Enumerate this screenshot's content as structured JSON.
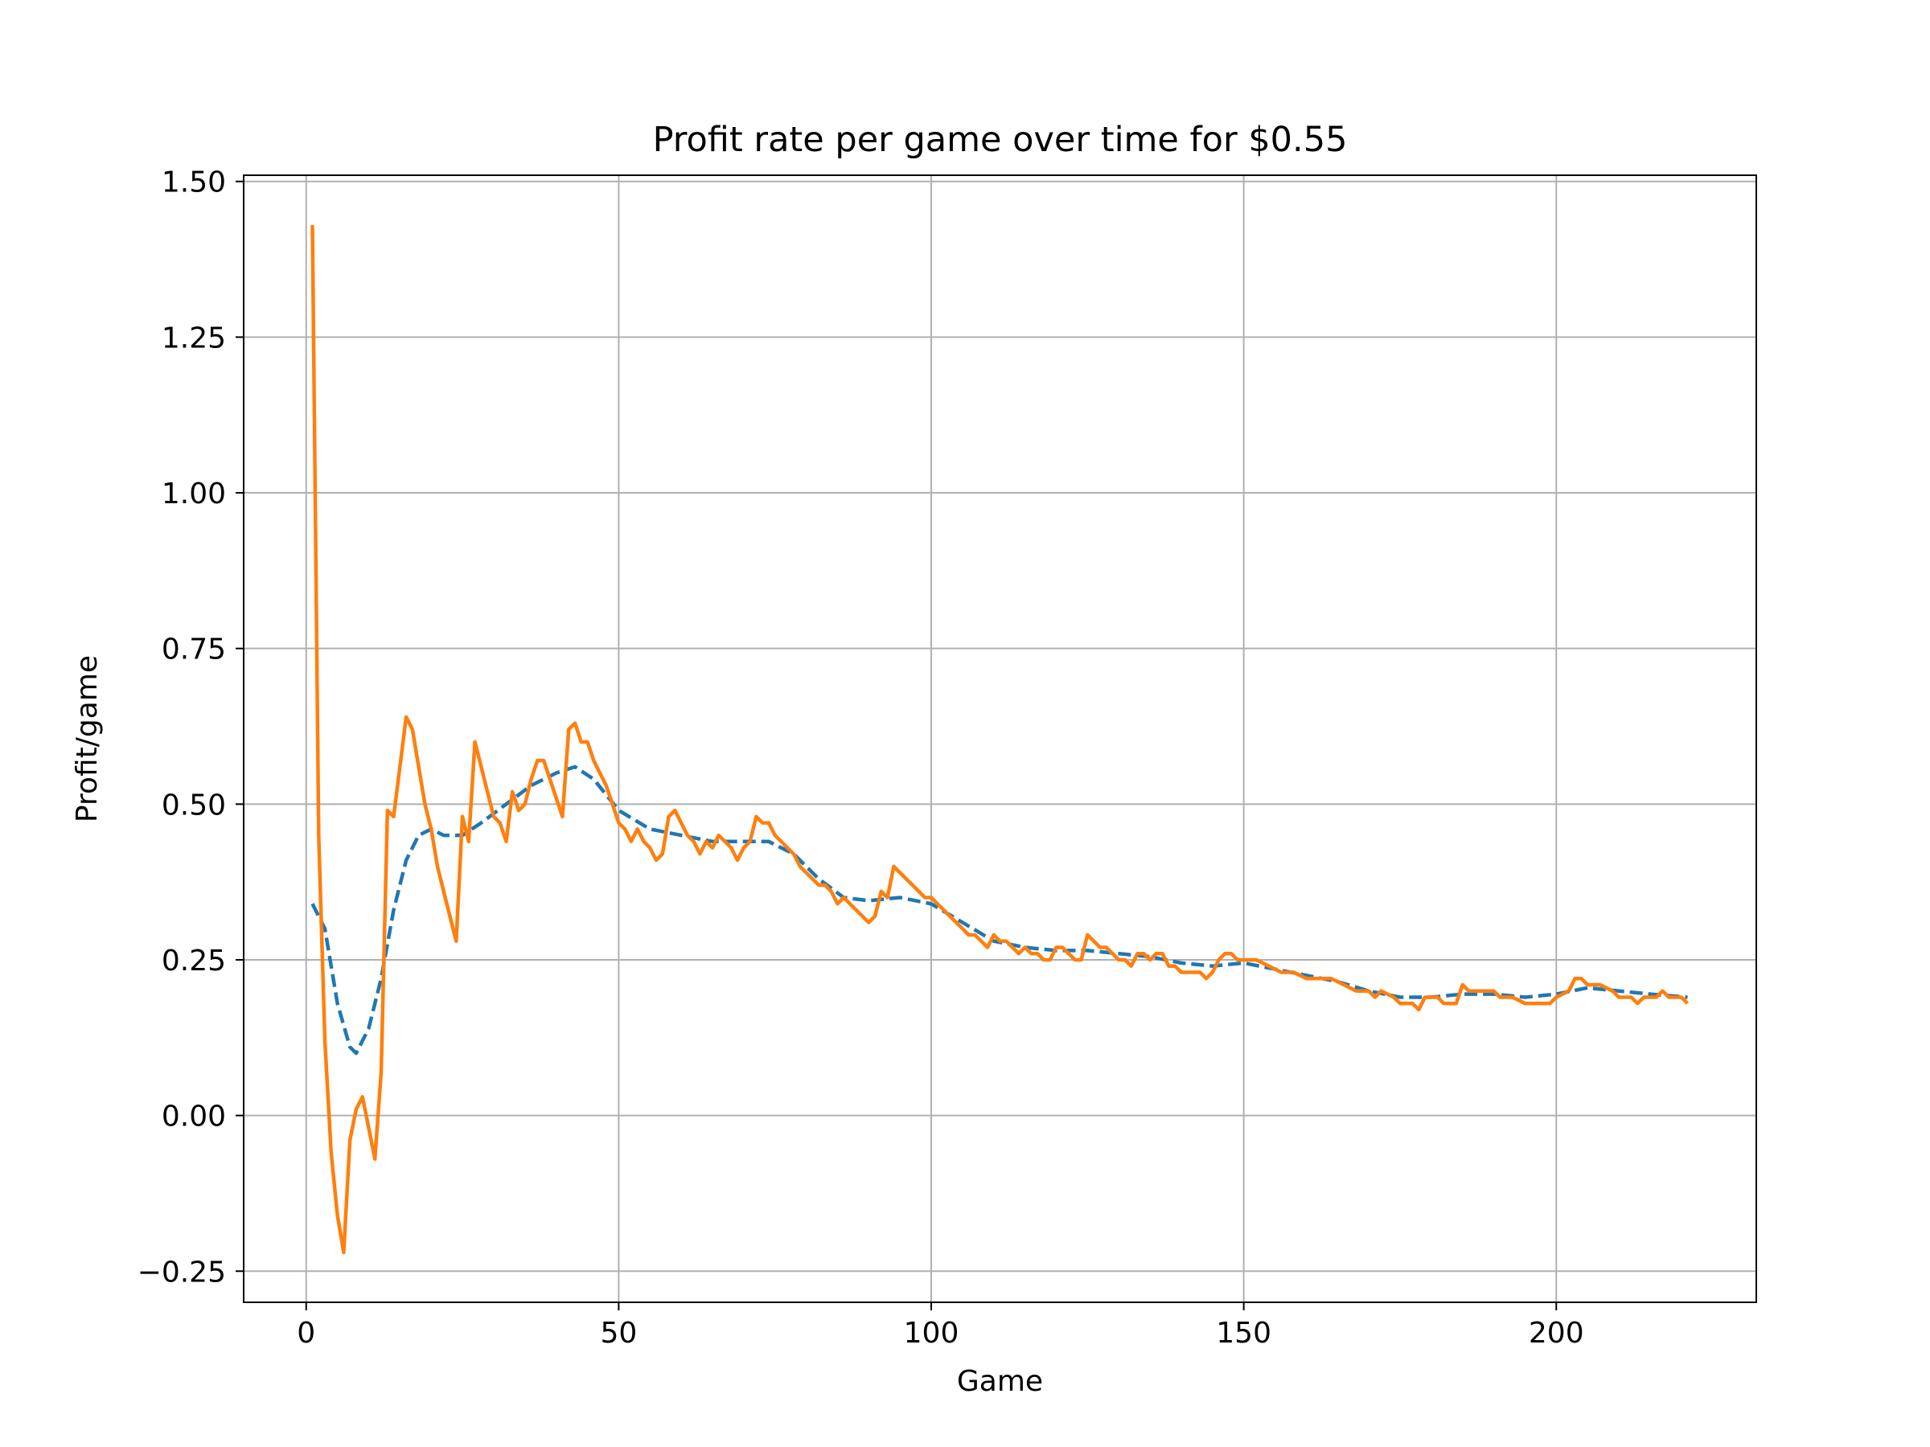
{
  "chart_data": {
    "type": "line",
    "title": "Profit rate per game over time for $0.55",
    "xlabel": "Game",
    "ylabel": "Profit/game",
    "xlim": [
      -10,
      232
    ],
    "ylim": [
      -0.3,
      1.51
    ],
    "xticks": [
      0,
      50,
      100,
      150,
      200
    ],
    "xtick_labels": [
      "0",
      "50",
      "100",
      "150",
      "200"
    ],
    "yticks": [
      -0.25,
      0.0,
      0.25,
      0.5,
      0.75,
      1.0,
      1.25,
      1.5
    ],
    "ytick_labels": [
      "−0.25",
      "0.00",
      "0.25",
      "0.50",
      "0.75",
      "1.00",
      "1.25",
      "1.50"
    ],
    "grid": true,
    "legend": "none",
    "series": [
      {
        "color": "#1f77b4",
        "style": "dashed",
        "points": [
          [
            1,
            0.34
          ],
          [
            3,
            0.3
          ],
          [
            5,
            0.18
          ],
          [
            7,
            0.11
          ],
          [
            8,
            0.1
          ],
          [
            10,
            0.14
          ],
          [
            12,
            0.22
          ],
          [
            14,
            0.33
          ],
          [
            16,
            0.41
          ],
          [
            18,
            0.45
          ],
          [
            20,
            0.46
          ],
          [
            22,
            0.45
          ],
          [
            25,
            0.45
          ],
          [
            28,
            0.47
          ],
          [
            32,
            0.5
          ],
          [
            36,
            0.53
          ],
          [
            40,
            0.55
          ],
          [
            43,
            0.56
          ],
          [
            46,
            0.54
          ],
          [
            50,
            0.49
          ],
          [
            55,
            0.46
          ],
          [
            60,
            0.45
          ],
          [
            65,
            0.44
          ],
          [
            70,
            0.44
          ],
          [
            74,
            0.44
          ],
          [
            78,
            0.42
          ],
          [
            82,
            0.38
          ],
          [
            86,
            0.35
          ],
          [
            90,
            0.345
          ],
          [
            95,
            0.35
          ],
          [
            100,
            0.34
          ],
          [
            105,
            0.31
          ],
          [
            110,
            0.28
          ],
          [
            115,
            0.27
          ],
          [
            120,
            0.265
          ],
          [
            125,
            0.265
          ],
          [
            130,
            0.26
          ],
          [
            135,
            0.255
          ],
          [
            140,
            0.245
          ],
          [
            145,
            0.24
          ],
          [
            150,
            0.245
          ],
          [
            155,
            0.235
          ],
          [
            160,
            0.225
          ],
          [
            165,
            0.215
          ],
          [
            170,
            0.2
          ],
          [
            175,
            0.19
          ],
          [
            180,
            0.19
          ],
          [
            185,
            0.195
          ],
          [
            190,
            0.195
          ],
          [
            195,
            0.19
          ],
          [
            200,
            0.195
          ],
          [
            205,
            0.205
          ],
          [
            210,
            0.2
          ],
          [
            215,
            0.195
          ],
          [
            221,
            0.19
          ]
        ]
      },
      {
        "color": "#ff7f0e",
        "style": "solid",
        "points": [
          [
            1,
            1.43
          ],
          [
            2,
            0.45
          ],
          [
            3,
            0.12
          ],
          [
            4,
            -0.06
          ],
          [
            5,
            -0.16
          ],
          [
            6,
            -0.22
          ],
          [
            7,
            -0.04
          ],
          [
            8,
            0.01
          ],
          [
            9,
            0.03
          ],
          [
            10,
            -0.02
          ],
          [
            11,
            -0.07
          ],
          [
            12,
            0.07
          ],
          [
            13,
            0.49
          ],
          [
            14,
            0.48
          ],
          [
            15,
            0.56
          ],
          [
            16,
            0.64
          ],
          [
            17,
            0.62
          ],
          [
            18,
            0.56
          ],
          [
            19,
            0.5
          ],
          [
            20,
            0.46
          ],
          [
            21,
            0.4
          ],
          [
            22,
            0.36
          ],
          [
            23,
            0.32
          ],
          [
            24,
            0.28
          ],
          [
            25,
            0.48
          ],
          [
            26,
            0.44
          ],
          [
            27,
            0.6
          ],
          [
            28,
            0.56
          ],
          [
            29,
            0.52
          ],
          [
            30,
            0.48
          ],
          [
            31,
            0.47
          ],
          [
            32,
            0.44
          ],
          [
            33,
            0.52
          ],
          [
            34,
            0.49
          ],
          [
            35,
            0.5
          ],
          [
            36,
            0.54
          ],
          [
            37,
            0.57
          ],
          [
            38,
            0.57
          ],
          [
            39,
            0.54
          ],
          [
            40,
            0.51
          ],
          [
            41,
            0.48
          ],
          [
            42,
            0.62
          ],
          [
            43,
            0.63
          ],
          [
            44,
            0.6
          ],
          [
            45,
            0.6
          ],
          [
            46,
            0.57
          ],
          [
            47,
            0.55
          ],
          [
            48,
            0.53
          ],
          [
            49,
            0.5
          ],
          [
            50,
            0.47
          ],
          [
            51,
            0.46
          ],
          [
            52,
            0.44
          ],
          [
            53,
            0.46
          ],
          [
            54,
            0.44
          ],
          [
            55,
            0.43
          ],
          [
            56,
            0.41
          ],
          [
            57,
            0.42
          ],
          [
            58,
            0.48
          ],
          [
            59,
            0.49
          ],
          [
            60,
            0.47
          ],
          [
            61,
            0.45
          ],
          [
            62,
            0.44
          ],
          [
            63,
            0.42
          ],
          [
            64,
            0.44
          ],
          [
            65,
            0.43
          ],
          [
            66,
            0.45
          ],
          [
            67,
            0.44
          ],
          [
            68,
            0.43
          ],
          [
            69,
            0.41
          ],
          [
            70,
            0.43
          ],
          [
            71,
            0.44
          ],
          [
            72,
            0.48
          ],
          [
            73,
            0.47
          ],
          [
            74,
            0.47
          ],
          [
            75,
            0.45
          ],
          [
            76,
            0.44
          ],
          [
            77,
            0.43
          ],
          [
            78,
            0.42
          ],
          [
            79,
            0.4
          ],
          [
            80,
            0.39
          ],
          [
            81,
            0.38
          ],
          [
            82,
            0.37
          ],
          [
            83,
            0.37
          ],
          [
            84,
            0.36
          ],
          [
            85,
            0.34
          ],
          [
            86,
            0.35
          ],
          [
            87,
            0.34
          ],
          [
            88,
            0.33
          ],
          [
            89,
            0.32
          ],
          [
            90,
            0.31
          ],
          [
            91,
            0.32
          ],
          [
            92,
            0.36
          ],
          [
            93,
            0.35
          ],
          [
            94,
            0.4
          ],
          [
            95,
            0.39
          ],
          [
            96,
            0.38
          ],
          [
            97,
            0.37
          ],
          [
            98,
            0.36
          ],
          [
            99,
            0.35
          ],
          [
            100,
            0.35
          ],
          [
            101,
            0.34
          ],
          [
            102,
            0.33
          ],
          [
            103,
            0.32
          ],
          [
            104,
            0.31
          ],
          [
            105,
            0.3
          ],
          [
            106,
            0.29
          ],
          [
            107,
            0.29
          ],
          [
            108,
            0.28
          ],
          [
            109,
            0.27
          ],
          [
            110,
            0.29
          ],
          [
            111,
            0.28
          ],
          [
            112,
            0.28
          ],
          [
            113,
            0.27
          ],
          [
            114,
            0.26
          ],
          [
            115,
            0.27
          ],
          [
            116,
            0.26
          ],
          [
            117,
            0.26
          ],
          [
            118,
            0.25
          ],
          [
            119,
            0.25
          ],
          [
            120,
            0.27
          ],
          [
            121,
            0.27
          ],
          [
            122,
            0.26
          ],
          [
            123,
            0.25
          ],
          [
            124,
            0.25
          ],
          [
            125,
            0.29
          ],
          [
            126,
            0.28
          ],
          [
            127,
            0.27
          ],
          [
            128,
            0.27
          ],
          [
            129,
            0.26
          ],
          [
            130,
            0.25
          ],
          [
            131,
            0.25
          ],
          [
            132,
            0.24
          ],
          [
            133,
            0.26
          ],
          [
            134,
            0.26
          ],
          [
            135,
            0.25
          ],
          [
            136,
            0.26
          ],
          [
            137,
            0.26
          ],
          [
            138,
            0.24
          ],
          [
            139,
            0.24
          ],
          [
            140,
            0.23
          ],
          [
            141,
            0.23
          ],
          [
            142,
            0.23
          ],
          [
            143,
            0.23
          ],
          [
            144,
            0.22
          ],
          [
            145,
            0.23
          ],
          [
            146,
            0.25
          ],
          [
            147,
            0.26
          ],
          [
            148,
            0.26
          ],
          [
            149,
            0.25
          ],
          [
            150,
            0.25
          ],
          [
            152,
            0.25
          ],
          [
            154,
            0.24
          ],
          [
            156,
            0.23
          ],
          [
            158,
            0.23
          ],
          [
            160,
            0.22
          ],
          [
            162,
            0.22
          ],
          [
            164,
            0.22
          ],
          [
            166,
            0.21
          ],
          [
            168,
            0.2
          ],
          [
            170,
            0.2
          ],
          [
            171,
            0.19
          ],
          [
            172,
            0.2
          ],
          [
            174,
            0.19
          ],
          [
            175,
            0.18
          ],
          [
            177,
            0.18
          ],
          [
            178,
            0.17
          ],
          [
            179,
            0.19
          ],
          [
            181,
            0.19
          ],
          [
            182,
            0.18
          ],
          [
            184,
            0.18
          ],
          [
            185,
            0.21
          ],
          [
            186,
            0.2
          ],
          [
            188,
            0.2
          ],
          [
            190,
            0.2
          ],
          [
            191,
            0.19
          ],
          [
            193,
            0.19
          ],
          [
            195,
            0.18
          ],
          [
            197,
            0.18
          ],
          [
            199,
            0.18
          ],
          [
            200,
            0.19
          ],
          [
            202,
            0.2
          ],
          [
            203,
            0.22
          ],
          [
            204,
            0.22
          ],
          [
            205,
            0.21
          ],
          [
            207,
            0.21
          ],
          [
            209,
            0.2
          ],
          [
            210,
            0.19
          ],
          [
            212,
            0.19
          ],
          [
            213,
            0.18
          ],
          [
            214,
            0.19
          ],
          [
            216,
            0.19
          ],
          [
            217,
            0.2
          ],
          [
            218,
            0.19
          ],
          [
            220,
            0.19
          ],
          [
            221,
            0.18
          ]
        ]
      }
    ]
  }
}
